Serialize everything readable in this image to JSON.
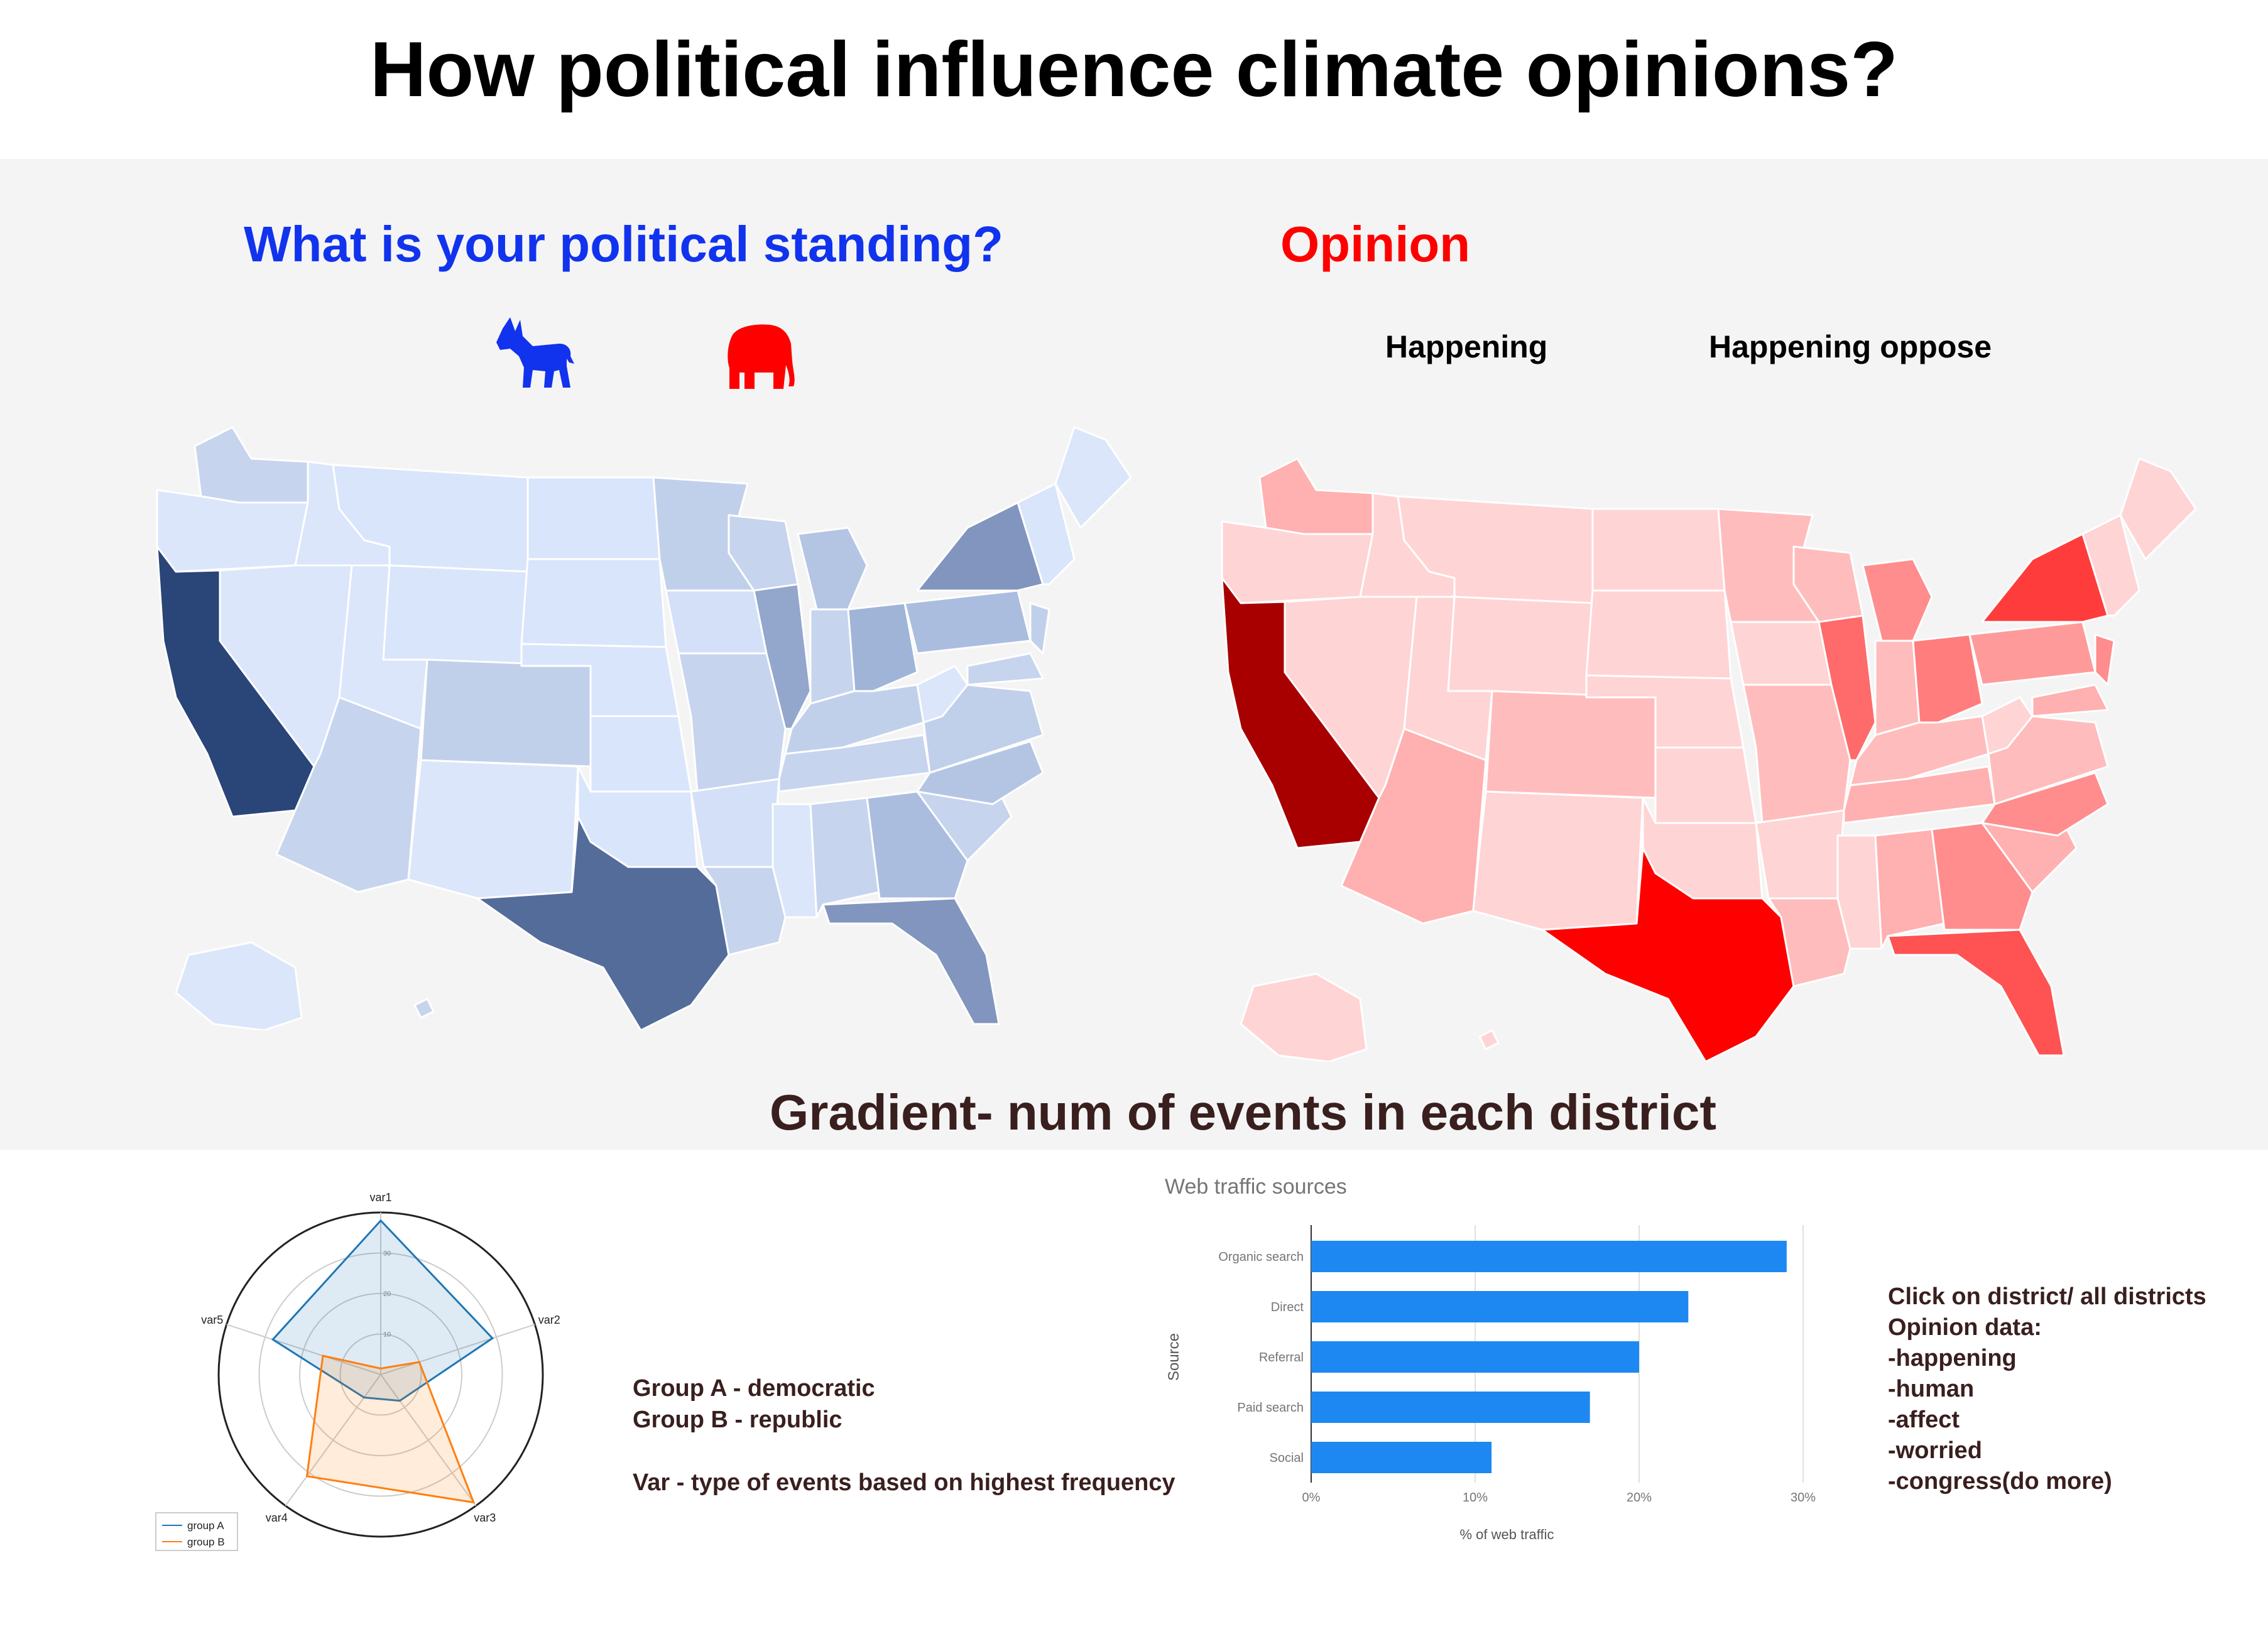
{
  "page": {
    "title": "How political influence climate opinions?"
  },
  "political": {
    "heading": "What is your political standing?",
    "donkey_icon": "democrat-donkey-icon",
    "elephant_icon": "republican-elephant-icon",
    "blue_color": "#1133ee",
    "red_color": "#ff0000"
  },
  "opinion": {
    "heading": "Opinion",
    "buttons": [
      "Happening",
      "Happening oppose"
    ]
  },
  "gradient_caption": "Gradient- num of events in each district",
  "groups": {
    "a": "Group A - democratic",
    "b": "Group B - republic",
    "var": "Var - type of events based on highest frequency"
  },
  "notes": {
    "lines": [
      "Click on district/ all districts",
      "Opinion data:",
      "-happening",
      "-human",
      "-affect",
      "-worried",
      "-congress(do more)"
    ]
  },
  "chart_data": [
    {
      "type": "radar",
      "axes": [
        "var1",
        "var2",
        "var3",
        "var4",
        "var5"
      ],
      "rticks": [
        "10",
        "20",
        "30"
      ],
      "rlim": [
        0,
        40
      ],
      "series": [
        {
          "name": "group A",
          "values": [
            38,
            29,
            8,
            7,
            28
          ],
          "color": "#1f77b4"
        },
        {
          "name": "group B",
          "values": [
            1.5,
            10,
            39,
            31,
            15
          ],
          "color": "#ff7f0e"
        }
      ],
      "legend": "lower-left"
    },
    {
      "type": "bar",
      "orientation": "horizontal",
      "title": "Web traffic sources",
      "xlabel": "% of web traffic",
      "ylabel": "Source",
      "categories": [
        "Organic search",
        "Direct",
        "Referral",
        "Paid search",
        "Social"
      ],
      "values": [
        29,
        23,
        20,
        17,
        11
      ],
      "xticks": [
        "0%",
        "10%",
        "20%",
        "30%"
      ],
      "xlim": [
        0,
        30
      ],
      "color": "#1e88f2",
      "grid": true
    }
  ]
}
